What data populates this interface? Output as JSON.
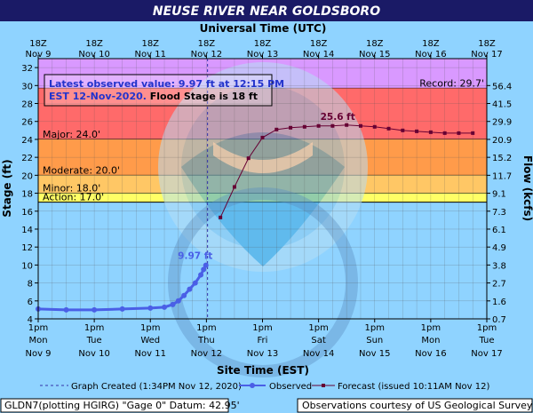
{
  "colors": {
    "title_bar": "#1a1a66",
    "outer_bg": "#8fd3ff",
    "record_band": "#d999ff",
    "major_band": "#ff6a6a",
    "moderate_band": "#ff9b4a",
    "minor_band": "#ffc765",
    "action_band": "#ffff66",
    "observed": "#4a5fe6",
    "forecast": "#660033",
    "info_text": "#2233cc",
    "watermark": "#3aa6e0"
  },
  "title": "NEUSE RIVER NEAR GOLDSBORO",
  "top_axis_title": "Universal Time (UTC)",
  "bottom_axis_title": "Site Time (EST)",
  "left_axis_title": "Stage (ft)",
  "right_axis_title": "Flow (kcfs)",
  "top_ticks": [
    {
      "hour": "18Z",
      "date": "Nov  9"
    },
    {
      "hour": "18Z",
      "date": "Nov 10"
    },
    {
      "hour": "18Z",
      "date": "Nov 11"
    },
    {
      "hour": "18Z",
      "date": "Nov 12"
    },
    {
      "hour": "18Z",
      "date": "Nov 13"
    },
    {
      "hour": "18Z",
      "date": "Nov 14"
    },
    {
      "hour": "18Z",
      "date": "Nov 15"
    },
    {
      "hour": "18Z",
      "date": "Nov 16"
    },
    {
      "hour": "18Z",
      "date": "Nov 17"
    }
  ],
  "bottom_ticks": [
    {
      "time": "1pm",
      "day": "Mon",
      "date": "Nov 9"
    },
    {
      "time": "1pm",
      "day": "Tue",
      "date": "Nov 10"
    },
    {
      "time": "1pm",
      "day": "Wed",
      "date": "Nov 11"
    },
    {
      "time": "1pm",
      "day": "Thu",
      "date": "Nov 12"
    },
    {
      "time": "1pm",
      "day": "Fri",
      "date": "Nov 13"
    },
    {
      "time": "1pm",
      "day": "Sat",
      "date": "Nov 14"
    },
    {
      "time": "1pm",
      "day": "Sun",
      "date": "Nov 15"
    },
    {
      "time": "1pm",
      "day": "Mon",
      "date": "Nov 16"
    },
    {
      "time": "1pm",
      "day": "Tue",
      "date": "Nov 17"
    }
  ],
  "stage_ticks": [
    {
      "value": 4,
      "label": "4"
    },
    {
      "value": 6,
      "label": "6"
    },
    {
      "value": 8,
      "label": "8"
    },
    {
      "value": 10,
      "label": "10"
    },
    {
      "value": 12,
      "label": "12"
    },
    {
      "value": 14,
      "label": "14"
    },
    {
      "value": 16,
      "label": "16"
    },
    {
      "value": 18,
      "label": "18"
    },
    {
      "value": 20,
      "label": "20"
    },
    {
      "value": 22,
      "label": "22"
    },
    {
      "value": 24,
      "label": "24"
    },
    {
      "value": 26,
      "label": "26"
    },
    {
      "value": 28,
      "label": "28"
    },
    {
      "value": 30,
      "label": "30"
    },
    {
      "value": 32,
      "label": "32"
    }
  ],
  "flow_ticks": [
    {
      "stage": 4,
      "label": "0.7"
    },
    {
      "stage": 6,
      "label": "1.6"
    },
    {
      "stage": 8,
      "label": "2.7"
    },
    {
      "stage": 10,
      "label": "3.8"
    },
    {
      "stage": 12,
      "label": "4.9"
    },
    {
      "stage": 14,
      "label": "6.1"
    },
    {
      "stage": 16,
      "label": "7.3"
    },
    {
      "stage": 18,
      "label": "9.1"
    },
    {
      "stage": 20,
      "label": "11.7"
    },
    {
      "stage": 22,
      "label": "15.2"
    },
    {
      "stage": 24,
      "label": "20.9"
    },
    {
      "stage": 26,
      "label": "29.9"
    },
    {
      "stage": 28,
      "label": "41.5"
    },
    {
      "stage": 30,
      "label": "56.4"
    }
  ],
  "flood_categories": [
    {
      "name": "Record",
      "label": "Record: 29.7'",
      "from": 29.7,
      "to": 33,
      "color_key": "record_band"
    },
    {
      "name": "Major",
      "label": "Major: 24.0'",
      "from": 24,
      "to": 29.7,
      "color_key": "major_band"
    },
    {
      "name": "Moderate",
      "label": "Moderate: 20.0'",
      "from": 20,
      "to": 24,
      "color_key": "moderate_band"
    },
    {
      "name": "Minor",
      "label": "Minor: 18.0'",
      "from": 18,
      "to": 20,
      "color_key": "minor_band"
    },
    {
      "name": "Action",
      "label": "Action: 17.0'",
      "from": 17,
      "to": 18,
      "color_key": "action_band"
    }
  ],
  "info_box": {
    "line1": "Latest observed value: 9.97 ft at 12:15 PM",
    "line2_date": "EST 12-Nov-2020.",
    "line2_flood": " Flood Stage is 18 ft"
  },
  "observed_label": "9.97 ft",
  "crest_label": "25.6 ft",
  "legend": {
    "graph_created": "Graph Created (1:34PM Nov 12, 2020)",
    "observed": "Observed",
    "forecast": "Forecast (issued 10:11AM Nov 12)"
  },
  "footer": {
    "left": "GLDN7(plotting HGIRG) \"Gage 0\" Datum: 42.95'",
    "right": "Observations courtesy of US Geological Survey"
  },
  "chart_data": {
    "type": "line",
    "x_unit": "days after Mon Nov 9 1pm EST",
    "xlim": [
      0,
      8
    ],
    "ylim": [
      4,
      33
    ],
    "y_unit": "ft",
    "graph_created_x": 3.02,
    "series": [
      {
        "name": "Observed",
        "points": [
          [
            0.0,
            5.1
          ],
          [
            0.5,
            5.0
          ],
          [
            1.0,
            5.0
          ],
          [
            1.5,
            5.1
          ],
          [
            2.0,
            5.2
          ],
          [
            2.25,
            5.3
          ],
          [
            2.4,
            5.6
          ],
          [
            2.5,
            6.0
          ],
          [
            2.6,
            6.6
          ],
          [
            2.7,
            7.3
          ],
          [
            2.8,
            8.0
          ],
          [
            2.9,
            8.9
          ],
          [
            2.95,
            9.5
          ],
          [
            2.99,
            9.97
          ]
        ]
      },
      {
        "name": "Forecast",
        "points": [
          [
            3.25,
            15.3
          ],
          [
            3.5,
            18.7
          ],
          [
            3.75,
            21.9
          ],
          [
            4.0,
            24.2
          ],
          [
            4.25,
            25.1
          ],
          [
            4.5,
            25.3
          ],
          [
            4.75,
            25.4
          ],
          [
            5.0,
            25.5
          ],
          [
            5.25,
            25.5
          ],
          [
            5.5,
            25.6
          ],
          [
            5.75,
            25.5
          ],
          [
            6.0,
            25.4
          ],
          [
            6.25,
            25.2
          ],
          [
            6.5,
            25.0
          ],
          [
            6.75,
            24.9
          ],
          [
            7.0,
            24.8
          ],
          [
            7.25,
            24.7
          ],
          [
            7.5,
            24.7
          ],
          [
            7.75,
            24.7
          ]
        ]
      }
    ]
  }
}
